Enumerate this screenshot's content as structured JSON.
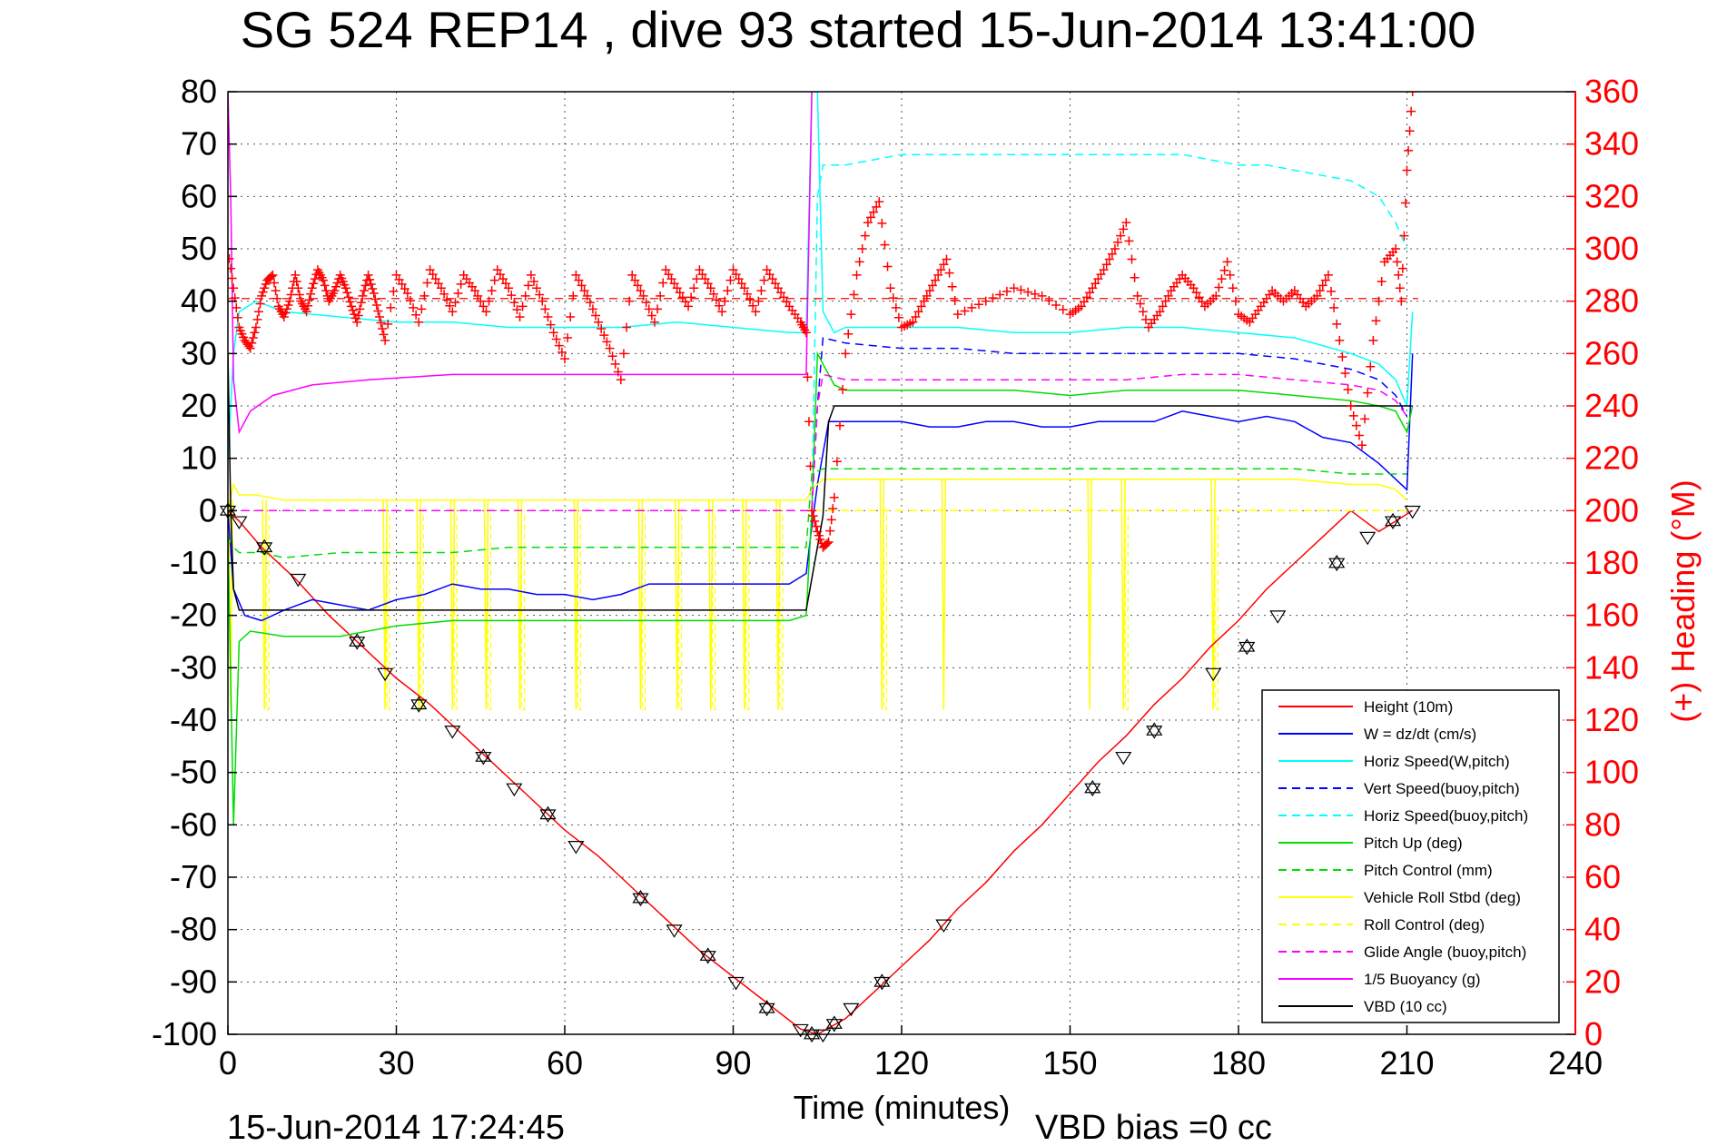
{
  "chart_data": {
    "type": "line",
    "title": "SG 524   REP14  , dive 93 started 15-Jun-2014 13:41:00",
    "xlabel": "Time (minutes)",
    "ylabel_right": "(+) Heading (°M)",
    "xlim": [
      0,
      240
    ],
    "ylim": [
      -100,
      80
    ],
    "ylim_right": [
      0,
      360
    ],
    "x_ticks": [
      "0",
      "30",
      "60",
      "90",
      "120",
      "150",
      "180",
      "210",
      "240"
    ],
    "y_ticks": [
      "80",
      "70",
      "60",
      "50",
      "40",
      "30",
      "20",
      "10",
      "0",
      "-10",
      "-20",
      "-30",
      "-40",
      "-50",
      "-60",
      "-70",
      "-80",
      "-90",
      "-100"
    ],
    "y_ticks_right": [
      "360",
      "340",
      "320",
      "300",
      "280",
      "260",
      "240",
      "220",
      "200",
      "180",
      "160",
      "140",
      "120",
      "100",
      "80",
      "60",
      "40",
      "20",
      "0"
    ],
    "grid": true,
    "legend_position": "bottom-right",
    "footer_left": "15-Jun-2014 17:24:45",
    "footer_right": "VBD bias =0 cc",
    "series": [
      {
        "name": "Height (10m)",
        "color": "#ff0000",
        "style": "solid",
        "x": [
          0,
          2,
          6,
          12,
          18,
          24,
          30,
          36,
          42,
          48,
          54,
          60,
          66,
          72,
          78,
          84,
          90,
          96,
          102,
          105,
          110,
          115,
          120,
          125,
          130,
          135,
          140,
          145,
          150,
          155,
          160,
          165,
          170,
          175,
          180,
          185,
          190,
          195,
          200,
          205,
          208,
          211
        ],
        "y": [
          0,
          -2,
          -7,
          -13,
          -20,
          -26,
          -32,
          -37,
          -43,
          -49,
          -55,
          -61,
          -66,
          -72,
          -78,
          -84,
          -89,
          -94,
          -99,
          -100,
          -97,
          -92,
          -87,
          -82,
          -76,
          -71,
          -65,
          -60,
          -54,
          -48,
          -43,
          -37,
          -32,
          -26,
          -21,
          -15,
          -10,
          -5,
          0,
          -4,
          -2,
          0
        ]
      },
      {
        "name": "W = dz/dt (cm/s)",
        "color": "#0000ff",
        "style": "solid",
        "x": [
          0,
          1,
          3,
          6,
          10,
          15,
          20,
          25,
          30,
          35,
          40,
          45,
          50,
          55,
          60,
          65,
          70,
          75,
          80,
          85,
          90,
          95,
          100,
          103,
          104,
          105,
          107,
          110,
          115,
          120,
          125,
          130,
          135,
          140,
          145,
          150,
          155,
          160,
          165,
          170,
          175,
          180,
          185,
          190,
          195,
          200,
          205,
          208,
          210,
          211
        ],
        "y": [
          0,
          -15,
          -20,
          -21,
          -19,
          -17,
          -18,
          -19,
          -17,
          -16,
          -14,
          -15,
          -15,
          -16,
          -16,
          -17,
          -16,
          -14,
          -14,
          -14,
          -14,
          -14,
          -14,
          -12,
          -3,
          5,
          17,
          17,
          17,
          17,
          16,
          16,
          17,
          17,
          16,
          16,
          17,
          17,
          17,
          19,
          18,
          17,
          18,
          17,
          14,
          13,
          9,
          6,
          4,
          30
        ]
      },
      {
        "name": "Horiz Speed(W,pitch)",
        "color": "#00ffff",
        "style": "solid",
        "x": [
          0,
          1,
          2,
          5,
          10,
          20,
          30,
          40,
          50,
          60,
          70,
          80,
          90,
          100,
          103,
          104,
          105,
          106,
          108,
          110,
          120,
          130,
          140,
          150,
          160,
          170,
          180,
          190,
          200,
          205,
          208,
          210,
          211
        ],
        "y": [
          10,
          30,
          38,
          40,
          38,
          37,
          36,
          36,
          35,
          35,
          35,
          36,
          35,
          34,
          34,
          80,
          80,
          38,
          34,
          35,
          35,
          35,
          34,
          34,
          35,
          35,
          34,
          33,
          30,
          28,
          25,
          20,
          38
        ]
      },
      {
        "name": "Vert Speed(buoy,pitch)",
        "color": "#0000ff",
        "style": "dashed",
        "x": [
          0,
          104,
          105,
          106,
          110,
          120,
          130,
          140,
          150,
          160,
          170,
          180,
          190,
          200,
          205,
          208,
          210
        ],
        "y": [
          0,
          0,
          20,
          33,
          32,
          31,
          31,
          30,
          30,
          30,
          30,
          30,
          29,
          27,
          25,
          22,
          18
        ]
      },
      {
        "name": "Horiz Speed(buoy,pitch)",
        "color": "#00ffff",
        "style": "dashed",
        "x": [
          104,
          105,
          106,
          110,
          115,
          120,
          130,
          140,
          150,
          160,
          165,
          170,
          175,
          180,
          185,
          190,
          195,
          200,
          205,
          208,
          210
        ],
        "y": [
          0,
          60,
          66,
          66,
          67,
          68,
          68,
          68,
          68,
          68,
          68,
          68,
          67,
          66,
          66,
          65,
          64,
          63,
          60,
          55,
          50
        ]
      },
      {
        "name": "Pitch Up (deg)",
        "color": "#00dd00",
        "style": "solid",
        "x": [
          0,
          1,
          2,
          4,
          10,
          20,
          30,
          40,
          50,
          60,
          70,
          80,
          90,
          100,
          103,
          104,
          105,
          106,
          108,
          110,
          120,
          130,
          140,
          150,
          160,
          170,
          180,
          190,
          200,
          205,
          208,
          210,
          211
        ],
        "y": [
          -5,
          -60,
          -25,
          -23,
          -24,
          -24,
          -22,
          -21,
          -21,
          -21,
          -21,
          -21,
          -21,
          -21,
          -20,
          0,
          30,
          28,
          24,
          23,
          23,
          23,
          23,
          22,
          23,
          23,
          23,
          22,
          21,
          20,
          19,
          15,
          20
        ]
      },
      {
        "name": "Pitch Control (mm)",
        "color": "#00dd00",
        "style": "dashed",
        "x": [
          0,
          1,
          2,
          6,
          10,
          20,
          30,
          40,
          50,
          60,
          70,
          80,
          90,
          100,
          103,
          104,
          106,
          110,
          120,
          130,
          140,
          150,
          160,
          170,
          180,
          190,
          200,
          205,
          208,
          210
        ],
        "y": [
          -5,
          -7,
          -8,
          -8,
          -9,
          -8,
          -8,
          -8,
          -7,
          -7,
          -7,
          -7,
          -7,
          -7,
          -7,
          7,
          8,
          8,
          8,
          8,
          8,
          8,
          8,
          8,
          8,
          8,
          7,
          7,
          7,
          7
        ]
      },
      {
        "name": "Vehicle Roll Stbd (deg)",
        "color": "#ffff00",
        "style": "solid",
        "x": [
          0,
          1,
          2,
          5,
          10,
          20,
          30,
          40,
          50,
          60,
          70,
          80,
          90,
          100,
          103,
          104,
          106,
          110,
          120,
          130,
          140,
          150,
          160,
          170,
          180,
          190,
          200,
          205,
          208,
          210
        ],
        "y": [
          0,
          5,
          3,
          3,
          2,
          2,
          2,
          2,
          2,
          2,
          2,
          2,
          2,
          2,
          2,
          4,
          6,
          6,
          6,
          6,
          6,
          6,
          6,
          6,
          6,
          6,
          5,
          5,
          4,
          2
        ]
      },
      {
        "name": "Roll Control (deg)",
        "color": "#ffff00",
        "style": "dashed",
        "x": [
          0,
          104,
          105,
          210
        ],
        "y": [
          0,
          0,
          0,
          0
        ]
      },
      {
        "name": "Glide Angle (buoy,pitch)",
        "color": "#ff00ff",
        "style": "dashed",
        "x": [
          0,
          104,
          105,
          106,
          110,
          120,
          130,
          140,
          150,
          160,
          170,
          180,
          190,
          200,
          205,
          208,
          210
        ],
        "y": [
          0,
          0,
          20,
          26,
          25,
          25,
          25,
          25,
          25,
          25,
          26,
          26,
          25,
          24,
          23,
          21,
          18
        ]
      },
      {
        "name": "1/5 Buoyancy (g)",
        "color": "#ff00ff",
        "style": "solid",
        "x": [
          0,
          0.5,
          1,
          2,
          4,
          8,
          15,
          25,
          40,
          60,
          80,
          100,
          103,
          104
        ],
        "y": [
          80,
          60,
          25,
          15,
          19,
          22,
          24,
          25,
          26,
          26,
          26,
          26,
          26,
          80
        ]
      },
      {
        "name": "VBD (10 cc)",
        "color": "#000000",
        "style": "solid",
        "x": [
          0,
          0.5,
          1,
          2,
          102,
          103,
          106,
          107,
          108,
          210,
          211
        ],
        "y": [
          30,
          0,
          -15,
          -19,
          -19,
          -19,
          -1,
          17,
          20,
          20,
          20
        ]
      }
    ],
    "heading_series": {
      "name": "Heading",
      "axis": "right",
      "color": "#ff0000",
      "marker": "+",
      "reference_value": 281,
      "x": [
        0,
        1,
        2,
        3,
        4,
        5,
        6,
        7,
        8,
        9,
        10,
        11,
        12,
        13,
        14,
        15,
        16,
        17,
        18,
        19,
        20,
        21,
        22,
        23,
        24,
        25,
        26,
        27,
        28,
        30,
        32,
        34,
        36,
        38,
        40,
        42,
        44,
        46,
        48,
        50,
        52,
        54,
        56,
        58,
        60,
        62,
        64,
        66,
        68,
        70,
        72,
        74,
        76,
        78,
        80,
        82,
        84,
        86,
        88,
        90,
        92,
        94,
        96,
        98,
        100,
        102,
        103,
        104,
        105,
        106,
        107,
        108,
        110,
        112,
        114,
        116,
        118,
        120,
        122,
        124,
        126,
        128,
        130,
        135,
        140,
        145,
        150,
        152,
        154,
        156,
        158,
        160,
        162,
        164,
        166,
        168,
        170,
        172,
        174,
        176,
        178,
        180,
        182,
        184,
        186,
        188,
        190,
        192,
        194,
        196,
        198,
        200,
        202,
        204,
        206,
        208,
        209,
        210,
        211
      ],
      "y": [
        300,
        285,
        270,
        265,
        262,
        270,
        282,
        288,
        290,
        278,
        274,
        280,
        290,
        280,
        276,
        285,
        292,
        288,
        280,
        284,
        290,
        285,
        278,
        272,
        282,
        290,
        283,
        274,
        265,
        290,
        283,
        272,
        292,
        285,
        276,
        290,
        284,
        276,
        292,
        285,
        274,
        290,
        280,
        268,
        258,
        290,
        282,
        272,
        262,
        250,
        290,
        282,
        272,
        292,
        285,
        278,
        292,
        285,
        276,
        292,
        285,
        276,
        292,
        285,
        278,
        272,
        268,
        200,
        192,
        186,
        188,
        205,
        260,
        290,
        310,
        318,
        285,
        270,
        272,
        280,
        288,
        296,
        275,
        280,
        285,
        282,
        275,
        278,
        285,
        292,
        300,
        310,
        282,
        270,
        276,
        284,
        290,
        285,
        278,
        282,
        295,
        275,
        272,
        278,
        284,
        280,
        284,
        278,
        282,
        290,
        265,
        240,
        225,
        265,
        295,
        300,
        280,
        330,
        360
      ]
    },
    "waypoint_markers": {
      "symbols": "triangles and hexagrams",
      "x": [
        0,
        2,
        6.5,
        12.5,
        23,
        28,
        34,
        40,
        45.5,
        51,
        57,
        62,
        73.5,
        79.5,
        85.5,
        90.5,
        96,
        102,
        104,
        106,
        108,
        111,
        116.5,
        127.5,
        154,
        159.5,
        165,
        175.5,
        181.5,
        187,
        197.5,
        203,
        207.5,
        211
      ],
      "y": [
        0,
        -2,
        -7,
        -13,
        -25,
        -31,
        -37,
        -42,
        -47,
        -53,
        -58,
        -64,
        -74,
        -80,
        -85,
        -90,
        -95,
        -99,
        -100,
        -100,
        -98,
        -95,
        -90,
        -79,
        -53,
        -47,
        -42,
        -31,
        -26,
        -20,
        -10,
        -5,
        -2,
        0
      ]
    },
    "yellow_spikes_x": [
      0.5,
      6.5,
      28,
      34,
      40,
      46,
      52,
      62,
      73.5,
      80,
      86,
      92,
      98,
      116.5,
      127.5,
      153.5,
      159.5,
      175.5
    ],
    "roll_control_spikes_x": [
      6.5,
      28,
      34,
      40,
      46,
      52,
      62,
      73.5,
      80,
      86,
      92,
      98,
      116.5,
      159.5,
      175.5
    ]
  }
}
